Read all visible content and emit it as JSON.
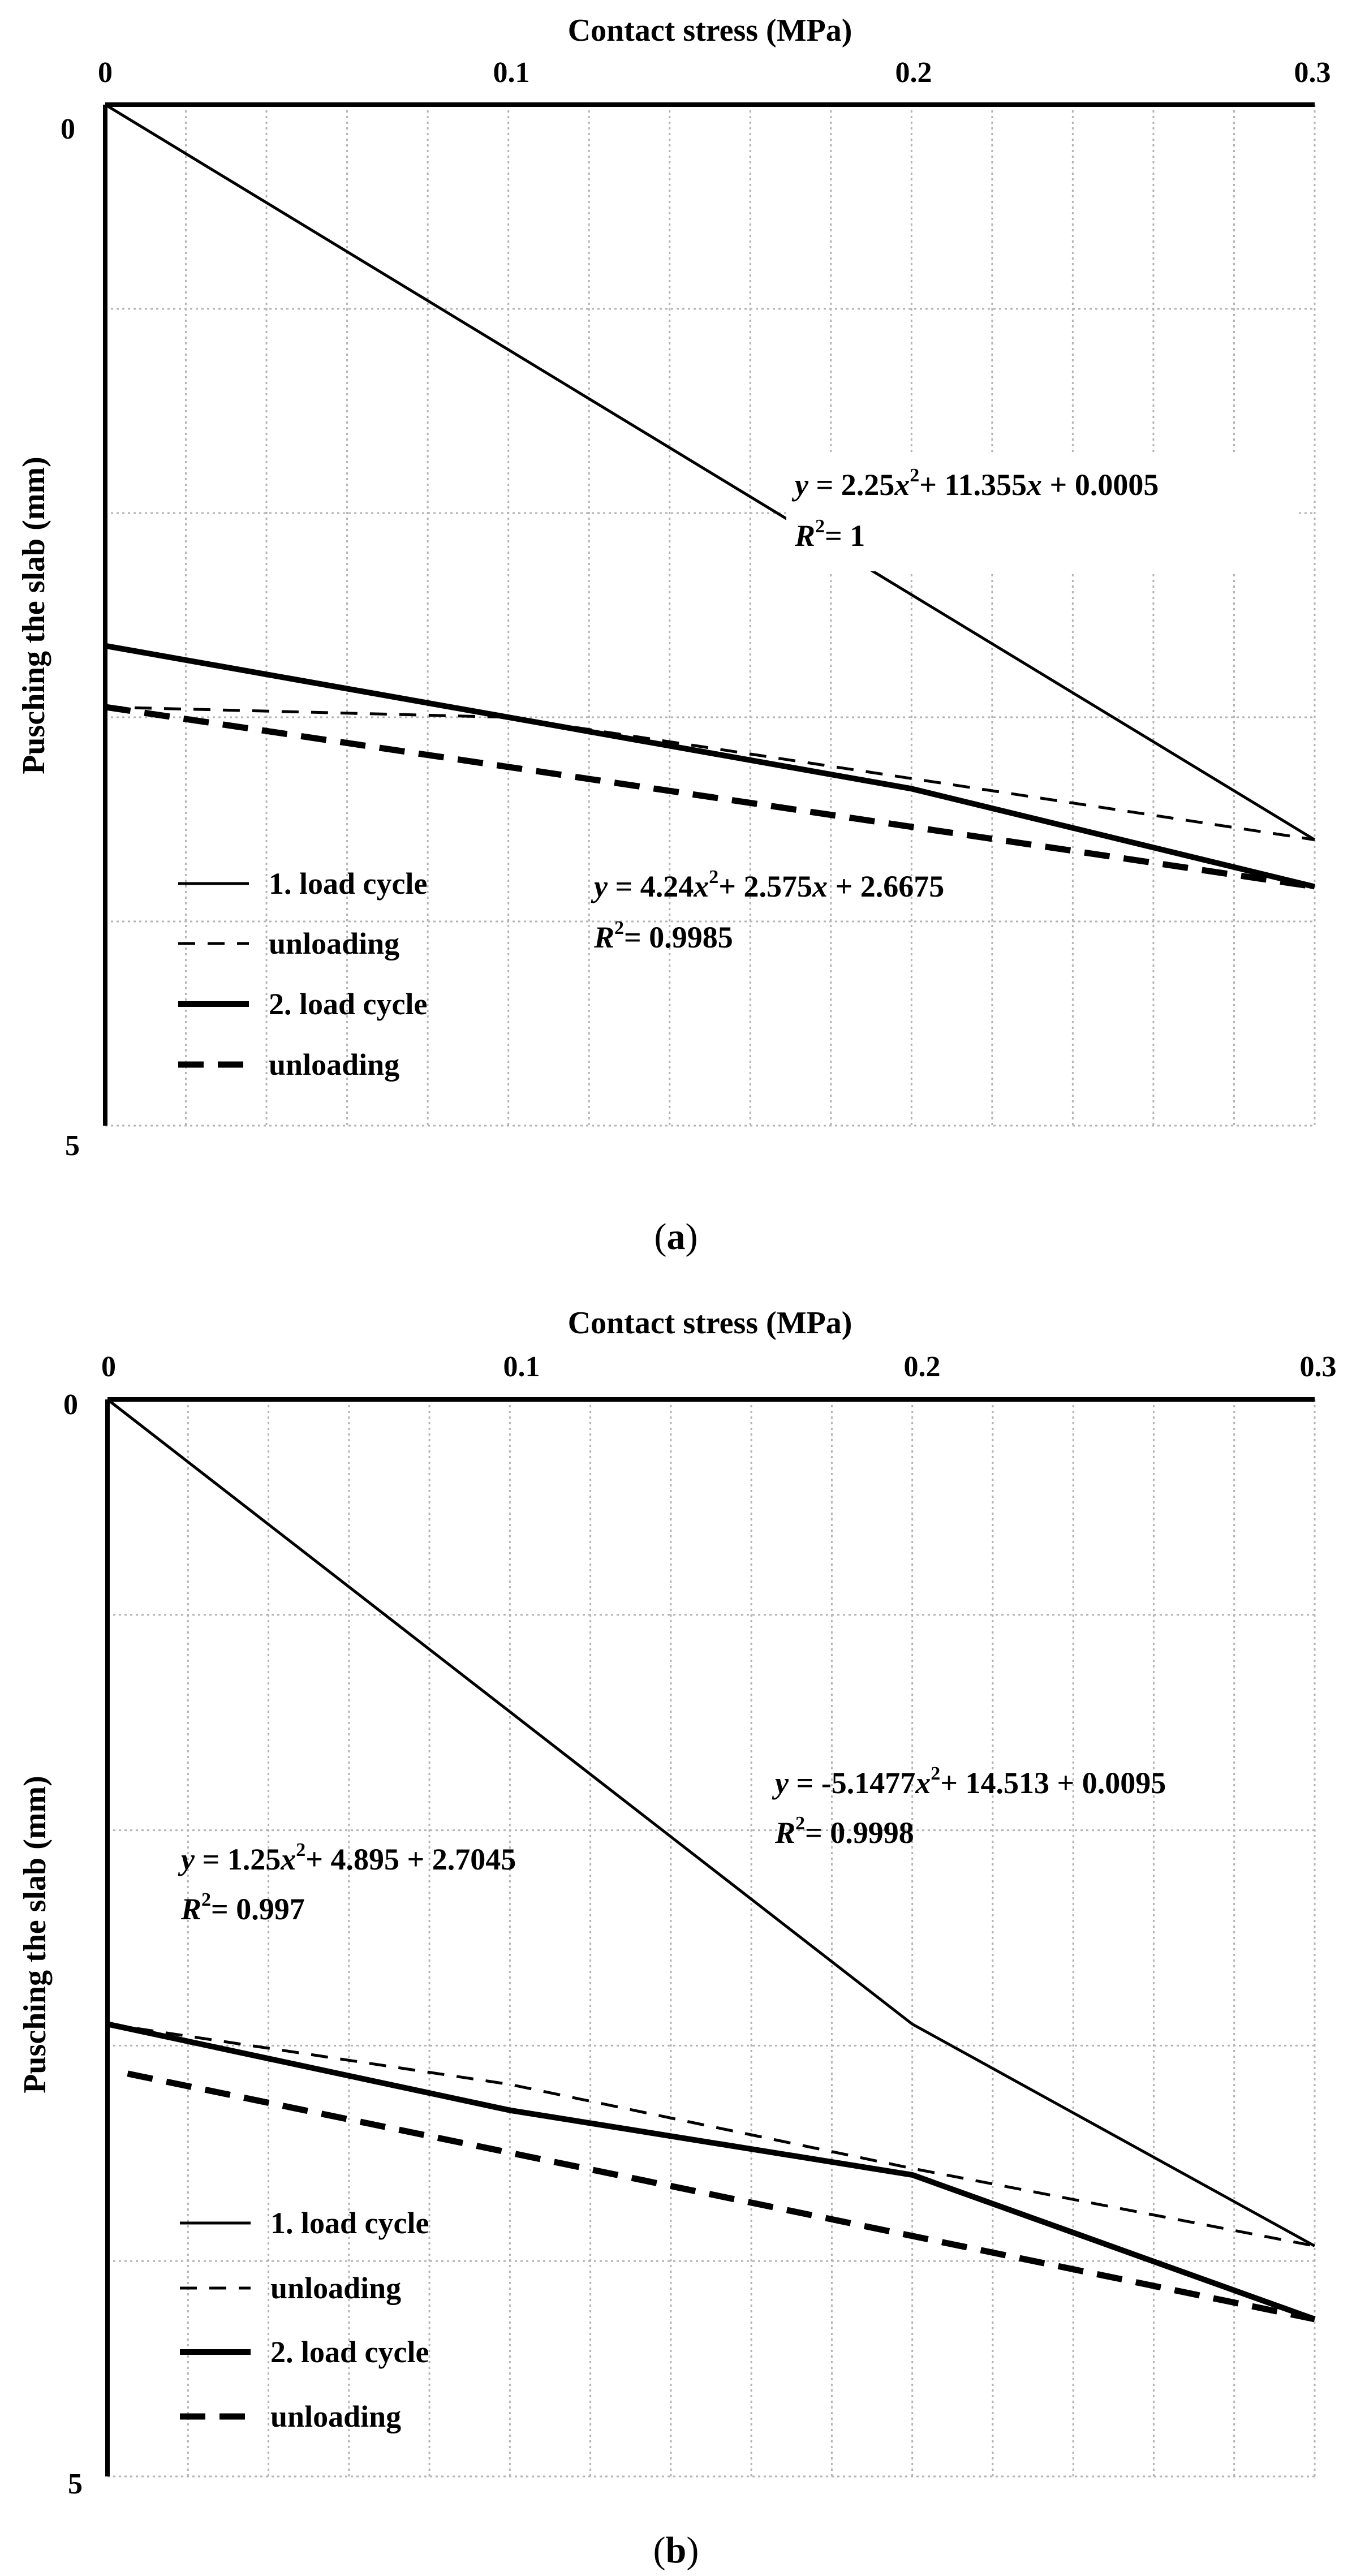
{
  "chart_data": [
    {
      "id": "a",
      "type": "line",
      "panel_label_prefix": "(",
      "panel_label_letter": "a",
      "panel_label_suffix": ")",
      "xlabel": "Contact stress (MPa)",
      "ylabel": "Pusching the slab (mm)",
      "xlim": [
        0,
        0.3
      ],
      "ylim": [
        0,
        5
      ],
      "x_ticks": [
        "0",
        "0.1",
        "0.2",
        "0.3"
      ],
      "y_ticks": [
        "0",
        "5"
      ],
      "series": [
        {
          "name": "1. load cycle",
          "style": "thin-solid",
          "points": [
            [
              0,
              0
            ],
            [
              0.3,
              3.6
            ]
          ]
        },
        {
          "name": "unloading",
          "style": "thin-dashed",
          "points": [
            [
              0,
              2.95
            ],
            [
              0.1,
              3.0
            ],
            [
              0.2,
              3.3
            ],
            [
              0.3,
              3.6
            ]
          ]
        },
        {
          "name": "2. load cycle",
          "style": "thick-solid",
          "points": [
            [
              0,
              2.65
            ],
            [
              0.1,
              3.0
            ],
            [
              0.2,
              3.35
            ],
            [
              0.3,
              3.83
            ]
          ]
        },
        {
          "name": "unloading",
          "style": "thick-dashed",
          "points": [
            [
              0,
              2.95
            ],
            [
              0.3,
              3.83
            ]
          ]
        }
      ],
      "equations": [
        {
          "y": "y",
          "eq_a": " = 2.25",
          "x": "x",
          "exp": "2",
          "eq_b": "+ 11.355",
          "x2": "x",
          "eq_c": " + 0.0005",
          "r": "R",
          "r_exp": "2",
          "r_val": "= 1"
        },
        {
          "y": "y",
          "eq_a": " = 4.24",
          "x": "x",
          "exp": "2",
          "eq_b": "+ 2.575",
          "x2": "x",
          "eq_c": " + 2.6675",
          "r": "R",
          "r_exp": "2",
          "r_val": "= 0.9985"
        }
      ]
    },
    {
      "id": "b",
      "type": "line",
      "panel_label_prefix": "(",
      "panel_label_letter": "b",
      "panel_label_suffix": ")",
      "xlabel": "Contact stress (MPa)",
      "ylabel": "Pusching the slab (mm)",
      "xlim": [
        0,
        0.3
      ],
      "ylim": [
        0,
        5
      ],
      "x_ticks": [
        "0",
        "0.1",
        "0.2",
        "0.3"
      ],
      "y_ticks": [
        "0",
        "5"
      ],
      "series": [
        {
          "name": "1. load cycle",
          "style": "thin-solid",
          "points": [
            [
              0,
              0
            ],
            [
              0.1,
              1.45
            ],
            [
              0.2,
              2.9
            ],
            [
              0.3,
              3.93
            ]
          ]
        },
        {
          "name": "unloading",
          "style": "thin-dashed",
          "points": [
            [
              0,
              2.9
            ],
            [
              0.1,
              3.18
            ],
            [
              0.2,
              3.57
            ],
            [
              0.3,
              3.93
            ]
          ]
        },
        {
          "name": "2. load cycle",
          "style": "thick-solid",
          "points": [
            [
              0,
              2.9
            ],
            [
              0.1,
              3.3
            ],
            [
              0.2,
              3.6
            ],
            [
              0.3,
              4.27
            ]
          ]
        },
        {
          "name": "unloading",
          "style": "thick-dashed",
          "points": [
            [
              0.005,
              3.13
            ],
            [
              0.3,
              4.27
            ]
          ]
        }
      ],
      "equations": [
        {
          "y": "y",
          "eq_a": " = -5.1477",
          "x": "x",
          "exp": "2",
          "eq_b": "+ 14.513 + 0.0095",
          "x2": "",
          "eq_c": "",
          "r": "R",
          "r_exp": "2",
          "r_val": "= 0.9998"
        },
        {
          "y": "y",
          "eq_a": " = 1.25",
          "x": "x",
          "exp": "2",
          "eq_b": "+ 4.895 + 2.7045",
          "x2": "",
          "eq_c": "",
          "r": "R",
          "r_exp": "2",
          "r_val": "= 0.997"
        }
      ]
    }
  ]
}
